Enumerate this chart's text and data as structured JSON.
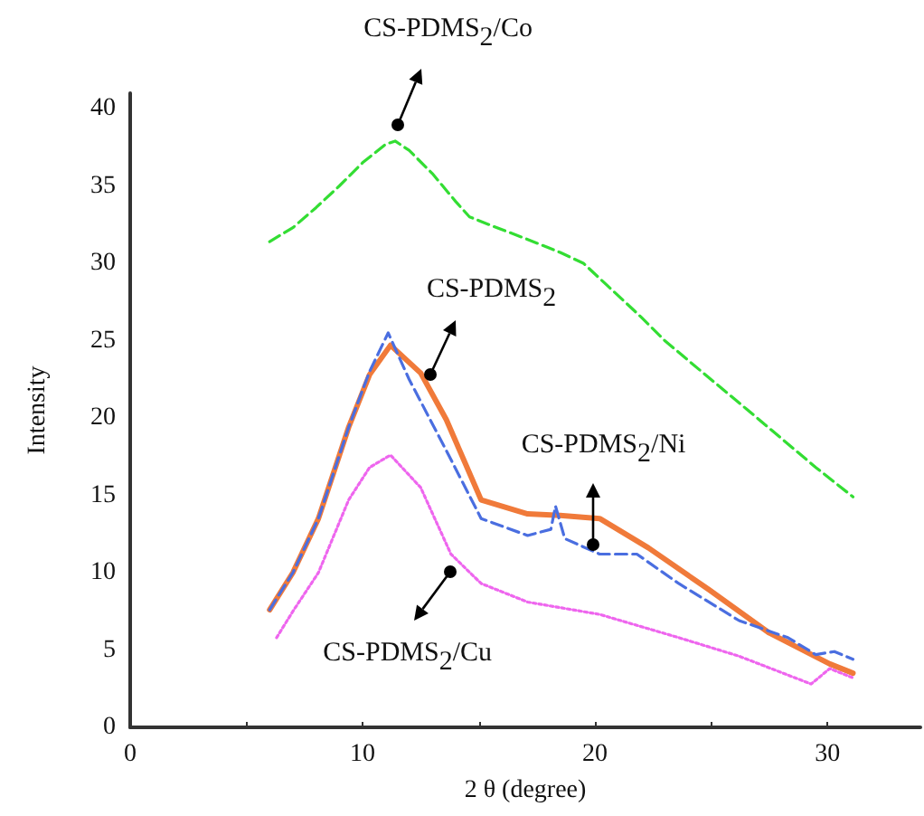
{
  "chart_data": {
    "type": "line",
    "xlabel": "2 θ (degree)",
    "ylabel": "Intensity",
    "xlim": [
      0,
      34
    ],
    "ylim": [
      0,
      41
    ],
    "xticks": [
      0,
      {
        "value": 5,
        "label": null
      },
      10,
      {
        "value": 15,
        "label": null
      },
      20,
      {
        "value": 25,
        "label": null
      },
      30
    ],
    "yticks": [
      0,
      5,
      10,
      15,
      20,
      25,
      30,
      35,
      40
    ],
    "grid": false,
    "marker": "none",
    "series": [
      {
        "color": "#33dd33",
        "line_style": "dashed",
        "x": [
          6,
          7,
          8,
          9,
          10,
          11,
          11.4,
          12,
          13,
          14,
          14.6,
          15.6,
          17,
          18.5,
          19.5,
          20.5,
          22,
          23,
          24.9,
          26.5,
          28,
          29.5,
          31.1
        ],
        "values": [
          31.4,
          32.3,
          33.6,
          35,
          36.5,
          37.7,
          37.9,
          37.3,
          35.8,
          34,
          33,
          32.4,
          31.6,
          30.7,
          30,
          28.6,
          26.5,
          25,
          22.6,
          20.6,
          18.7,
          16.8,
          14.9
        ]
      },
      {
        "color": "#f07a3a",
        "line_style": "solid",
        "x": [
          6,
          7,
          8.1,
          9.4,
          10.3,
          11.2,
          12.5,
          13.6,
          15.1,
          17.1,
          18.5,
          20.2,
          22.3,
          24.9,
          27.5,
          30.1,
          31.1
        ],
        "values": [
          7.6,
          10,
          13.5,
          19.4,
          22.8,
          24.7,
          22.9,
          19.9,
          14.7,
          13.8,
          13.7,
          13.5,
          11.6,
          8.9,
          6.1,
          4.1,
          3.5
        ]
      },
      {
        "color": "#4a6ee0",
        "line_style": "dashed",
        "x": [
          6,
          7,
          8.1,
          9.4,
          10.3,
          11.1,
          12,
          13.6,
          15.1,
          17.1,
          18.1,
          18.3,
          18.7,
          20.2,
          21.8,
          23.6,
          26.2,
          28.3,
          29.5,
          30.3,
          31.1
        ],
        "values": [
          7.6,
          10,
          13.5,
          19.4,
          23,
          25.5,
          22.5,
          17.9,
          13.5,
          12.4,
          12.8,
          14.3,
          12.2,
          11.2,
          11.2,
          9.3,
          6.9,
          5.8,
          4.7,
          4.9,
          4.4
        ]
      },
      {
        "color": "#ee66ee",
        "line_style": "dotted",
        "x": [
          6.3,
          7,
          8.1,
          9.4,
          10.3,
          11.2,
          12.5,
          13.8,
          15.1,
          17.1,
          20.2,
          23.6,
          26.2,
          29.3,
          30.1,
          31.1
        ],
        "values": [
          5.8,
          7.5,
          10,
          14.7,
          16.8,
          17.6,
          15.5,
          11.2,
          9.3,
          8.1,
          7.3,
          5.8,
          4.6,
          2.8,
          3.8,
          3.2
        ]
      }
    ],
    "annotations": [
      {
        "text": "CS-PDMS$_{2}$/Co",
        "x": 11.5,
        "y": 38.9
      },
      {
        "text": "CS-PDMS$_{2}$",
        "x": 12.9,
        "y": 22.8
      },
      {
        "text": "CS-PDMS$_{2}$/Ni",
        "x": 19.9,
        "y": 11.8
      },
      {
        "text": "CS-PDMS$_{2}$/Cu",
        "x": 13.8,
        "y": 10.1
      }
    ]
  }
}
